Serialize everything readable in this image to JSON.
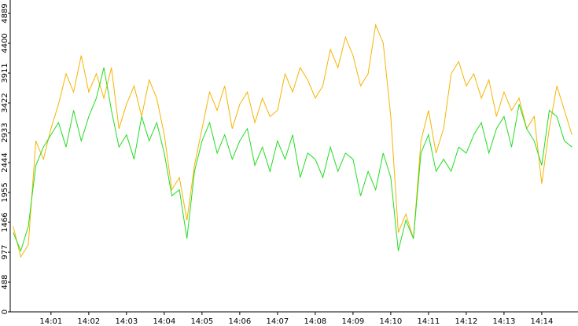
{
  "chart_data": {
    "type": "line",
    "x": [
      0,
      0.2,
      0.4,
      0.6,
      0.8,
      1,
      1.2,
      1.4,
      1.6,
      1.8,
      2,
      2.2,
      2.4,
      2.6,
      2.8,
      3,
      3.2,
      3.4,
      3.6,
      3.8,
      4,
      4.2,
      4.4,
      4.6,
      4.8,
      5,
      5.2,
      5.4,
      5.6,
      5.8,
      6,
      6.2,
      6.4,
      6.6,
      6.8,
      7,
      7.2,
      7.4,
      7.6,
      7.8,
      8,
      8.2,
      8.4,
      8.6,
      8.8,
      9,
      9.2,
      9.4,
      9.6,
      9.8,
      10,
      10.2,
      10.4,
      10.6,
      10.8,
      11,
      11.2,
      11.4,
      11.6,
      11.8,
      12,
      12.2,
      12.4,
      12.6,
      12.8,
      13,
      13.2,
      13.4,
      13.6,
      13.8,
      14,
      14.2,
      14.4,
      14.6,
      14.8
    ],
    "series": [
      {
        "color": "#f5b400",
        "values": [
          1400,
          900,
          1100,
          2800,
          2500,
          3000,
          3400,
          3900,
          3600,
          4200,
          3600,
          3900,
          3500,
          4000,
          3000,
          3400,
          3700,
          3200,
          3800,
          3500,
          2900,
          2000,
          2200,
          1500,
          2400,
          3000,
          3600,
          3300,
          3700,
          3000,
          3400,
          3600,
          3100,
          3500,
          3200,
          3300,
          3900,
          3600,
          4000,
          3800,
          3500,
          3700,
          4300,
          4000,
          4500,
          4200,
          3700,
          3900,
          4700,
          4400,
          3200,
          1300,
          1600,
          1200,
          2800,
          3300,
          2600,
          3000,
          3900,
          4100,
          3700,
          3900,
          3500,
          3800,
          3200,
          3600,
          3300,
          3500,
          3000,
          3200,
          2100,
          3000,
          3700,
          3300,
          2900
        ]
      },
      {
        "color": "#22dd22",
        "values": [
          1300,
          1000,
          1400,
          2400,
          2700,
          2900,
          3100,
          2700,
          3300,
          2800,
          3200,
          3500,
          4000,
          3300,
          2700,
          2900,
          2500,
          3200,
          2800,
          3100,
          2600,
          1900,
          2000,
          1200,
          2300,
          2800,
          3100,
          2600,
          2900,
          2500,
          2800,
          3000,
          2400,
          2700,
          2300,
          2800,
          2500,
          2900,
          2200,
          2600,
          2500,
          2200,
          2700,
          2300,
          2600,
          2500,
          1900,
          2300,
          2000,
          2600,
          2200,
          1000,
          1500,
          1200,
          2600,
          2900,
          2300,
          2500,
          2300,
          2700,
          2600,
          2900,
          3100,
          2600,
          3000,
          3200,
          2700,
          3400,
          3000,
          2800,
          2400,
          3300,
          3200,
          2800,
          2700
        ]
      }
    ],
    "xlim": [
      -0.08,
      14.96
    ],
    "xticks": [
      {
        "value": 1,
        "label": "14:01"
      },
      {
        "value": 2,
        "label": "14:02"
      },
      {
        "value": 3,
        "label": "14:03"
      },
      {
        "value": 4,
        "label": "14:04"
      },
      {
        "value": 5,
        "label": "14:05"
      },
      {
        "value": 6,
        "label": "14:06"
      },
      {
        "value": 7,
        "label": "14:07"
      },
      {
        "value": 8,
        "label": "14:08"
      },
      {
        "value": 9,
        "label": "14:09"
      },
      {
        "value": 10,
        "label": "14:10"
      },
      {
        "value": 11,
        "label": "14:11"
      },
      {
        "value": 12,
        "label": "14:12"
      },
      {
        "value": 13,
        "label": "14:13"
      },
      {
        "value": 14,
        "label": "14:14"
      }
    ],
    "ylim": [
      0,
      5108
    ],
    "yticks": [
      0,
      488,
      977,
      1466,
      1955,
      2444,
      2933,
      3422,
      3911,
      4400,
      4889
    ]
  }
}
